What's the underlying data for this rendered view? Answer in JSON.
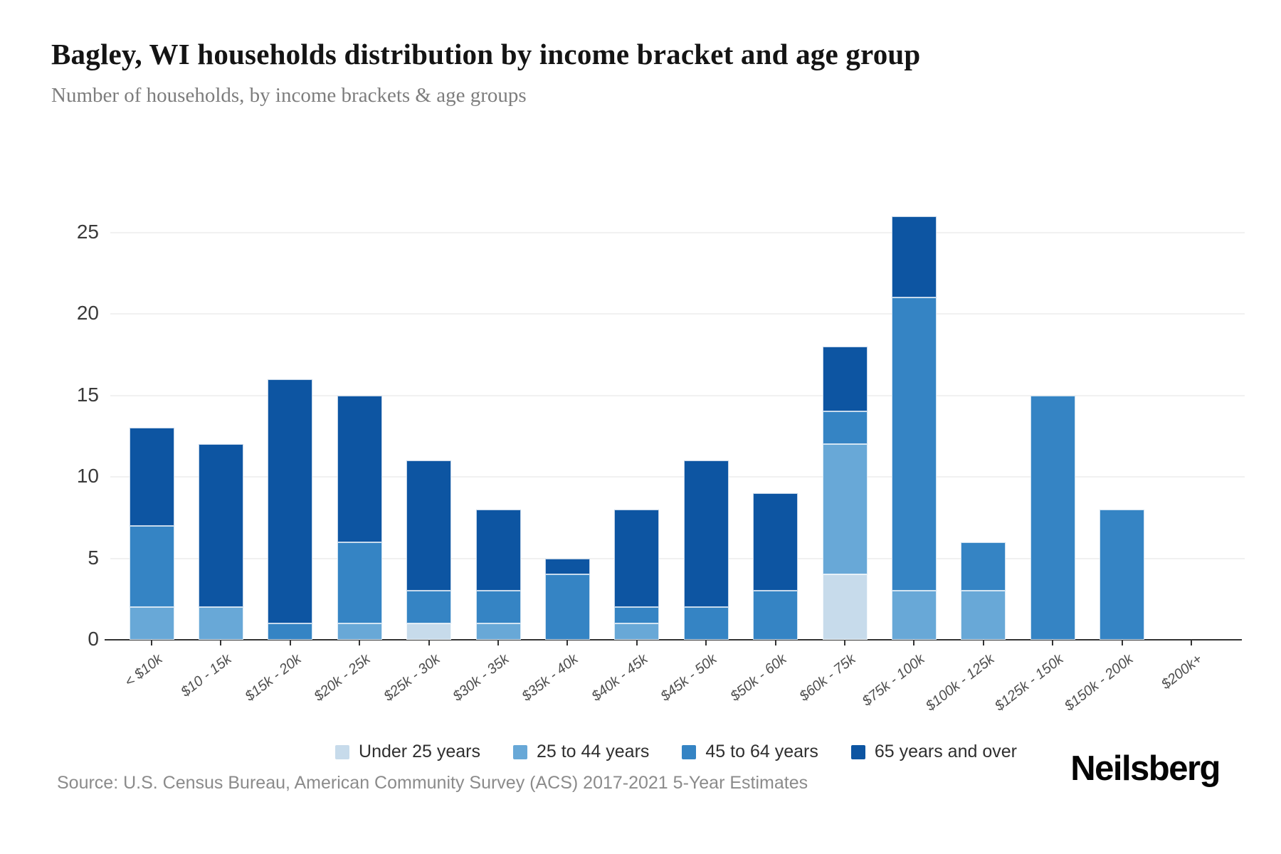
{
  "header": {
    "title": "Bagley, WI households distribution by income bracket and age group",
    "subtitle": "Number of households, by income brackets & age groups"
  },
  "footer": {
    "source": "Source: U.S. Census Bureau, American Community Survey (ACS) 2017-2021 5-Year Estimates",
    "brand": "Neilsberg"
  },
  "chart_data": {
    "type": "bar",
    "stacked": true,
    "title": "Bagley, WI households distribution by income bracket and age group",
    "xlabel": "",
    "ylabel": "Number of households",
    "categories": [
      "< $10k",
      "$10 - 15k",
      "$15k - 20k",
      "$20k - 25k",
      "$25k - 30k",
      "$30k - 35k",
      "$35k - 40k",
      "$40k - 45k",
      "$45k - 50k",
      "$50k - 60k",
      "$60k - 75k",
      "$75k - 100k",
      "$100k - 125k",
      "$125k - 150k",
      "$150k - 200k",
      "$200k+"
    ],
    "series": [
      {
        "name": "Under 25 years",
        "color": "#c7dbeb",
        "values": [
          0,
          0,
          0,
          0,
          1,
          0,
          0,
          0,
          0,
          0,
          4,
          0,
          0,
          0,
          0,
          0
        ]
      },
      {
        "name": "25 to 44 years",
        "color": "#68a8d7",
        "values": [
          2,
          2,
          0,
          1,
          0,
          1,
          0,
          1,
          0,
          0,
          8,
          3,
          3,
          0,
          0,
          0
        ]
      },
      {
        "name": "45 to 64 years",
        "color": "#3584c4",
        "values": [
          5,
          0,
          1,
          5,
          2,
          2,
          4,
          1,
          2,
          3,
          2,
          18,
          3,
          15,
          8,
          0
        ]
      },
      {
        "name": "65 years and over",
        "color": "#0d55a2",
        "values": [
          6,
          10,
          15,
          9,
          8,
          5,
          1,
          6,
          9,
          6,
          4,
          5,
          0,
          0,
          0,
          0
        ]
      }
    ],
    "totals": [
      13,
      12,
      16,
      15,
      11,
      8,
      5,
      8,
      11,
      9,
      18,
      26,
      6,
      15,
      8,
      0
    ],
    "yticks": [
      0,
      5,
      10,
      15,
      20,
      25
    ],
    "ylim": [
      0,
      27.9
    ],
    "grid": "horizontal",
    "legend_position": "bottom",
    "grid_color": "#f1f1f1",
    "axis_color": "#333333"
  }
}
